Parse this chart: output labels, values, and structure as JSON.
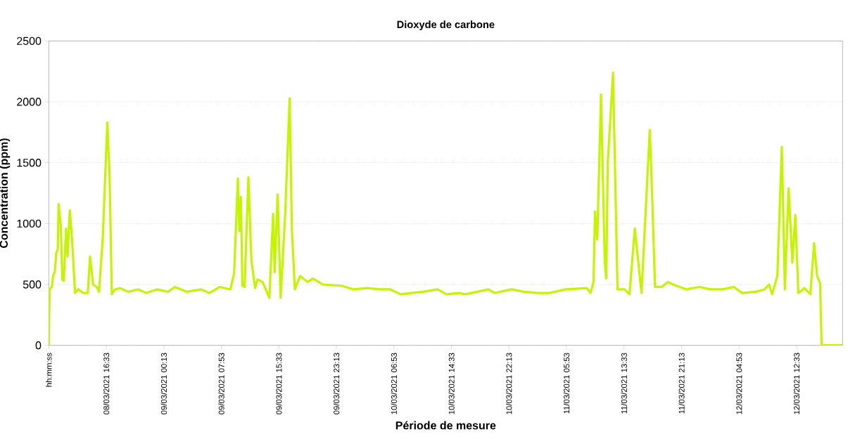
{
  "chart_data": {
    "type": "line",
    "title": "Dioxyde de carbone",
    "xlabel": "Période de mesure",
    "ylabel": "Concentration (ppm)",
    "x": [
      "2021-03-08T08:53",
      "2021-03-08T08:59",
      "2021-03-08T09:17",
      "2021-03-08T09:29",
      "2021-03-08T09:41",
      "2021-03-08T09:53",
      "2021-03-08T10:05",
      "2021-03-08T10:11",
      "2021-03-08T10:29",
      "2021-03-08T10:41",
      "2021-03-08T10:53",
      "2021-03-08T11:11",
      "2021-03-08T11:23",
      "2021-03-08T11:41",
      "2021-03-08T11:59",
      "2021-03-08T12:23",
      "2021-03-08T12:47",
      "2021-03-08T13:29",
      "2021-03-08T14:05",
      "2021-03-08T14:23",
      "2021-03-08T14:47",
      "2021-03-08T15:17",
      "2021-03-08T15:35",
      "2021-03-08T16:05",
      "2021-03-08T16:41",
      "2021-03-08T16:59",
      "2021-03-08T17:17",
      "2021-03-08T17:41",
      "2021-03-08T18:23",
      "2021-03-08T19:29",
      "2021-03-08T20:47",
      "2021-03-08T21:53",
      "2021-03-08T23:17",
      "2021-03-09T00:47",
      "2021-03-09T01:41",
      "2021-03-09T03:17",
      "2021-03-09T05:11",
      "2021-03-09T06:17",
      "2021-03-09T07:41",
      "2021-03-09T09:05",
      "2021-03-09T09:35",
      "2021-03-09T10:05",
      "2021-03-09T10:17",
      "2021-03-09T10:29",
      "2021-03-09T10:41",
      "2021-03-09T10:59",
      "2021-03-09T11:29",
      "2021-03-09T11:53",
      "2021-03-09T12:23",
      "2021-03-09T12:41",
      "2021-03-09T13:23",
      "2021-03-09T14:17",
      "2021-03-09T14:47",
      "2021-03-09T14:59",
      "2021-03-09T15:23",
      "2021-03-09T15:47",
      "2021-03-09T16:23",
      "2021-03-09T16:59",
      "2021-03-09T17:17",
      "2021-03-09T17:41",
      "2021-03-09T18:23",
      "2021-03-09T19:23",
      "2021-03-09T20:05",
      "2021-03-09T21:23",
      "2021-03-09T23:53",
      "2021-03-10T01:29",
      "2021-03-10T03:17",
      "2021-03-10T05:11",
      "2021-03-10T06:23",
      "2021-03-10T07:47",
      "2021-03-10T09:11",
      "2021-03-10T10:47",
      "2021-03-10T12:41",
      "2021-03-10T13:53",
      "2021-03-10T15:29",
      "2021-03-10T16:23",
      "2021-03-10T17:59",
      "2021-03-10T19:29",
      "2021-03-10T20:17",
      "2021-03-10T22:35",
      "2021-03-11T00:11",
      "2021-03-11T02:05",
      "2021-03-11T03:35",
      "2021-03-11T05:47",
      "2021-03-11T08:35",
      "2021-03-11T09:05",
      "2021-03-11T09:29",
      "2021-03-11T09:41",
      "2021-03-11T09:59",
      "2021-03-11T10:29",
      "2021-03-11T10:59",
      "2021-03-11T11:11",
      "2021-03-11T11:23",
      "2021-03-11T12:05",
      "2021-03-11T12:41",
      "2021-03-11T13:35",
      "2021-03-11T14:17",
      "2021-03-11T14:59",
      "2021-03-11T15:53",
      "2021-03-11T16:29",
      "2021-03-11T16:59",
      "2021-03-11T17:17",
      "2021-03-11T17:41",
      "2021-03-11T18:35",
      "2021-03-11T19:23",
      "2021-03-11T20:29",
      "2021-03-11T21:53",
      "2021-03-11T23:35",
      "2021-03-12T01:05",
      "2021-03-12T02:41",
      "2021-03-12T04:11",
      "2021-03-12T05:17",
      "2021-03-12T07:05",
      "2021-03-12T08:17",
      "2021-03-12T08:53",
      "2021-03-12T09:17",
      "2021-03-12T09:59",
      "2021-03-12T10:35",
      "2021-03-12T10:59",
      "2021-03-12T11:29",
      "2021-03-12T11:59",
      "2021-03-12T12:23",
      "2021-03-12T12:47",
      "2021-03-12T13:35",
      "2021-03-12T14:23",
      "2021-03-12T14:53",
      "2021-03-12T15:17",
      "2021-03-12T15:41",
      "2021-03-12T15:53",
      "2021-03-12T18:41"
    ],
    "values": [
      0,
      460,
      480,
      580,
      600,
      760,
      790,
      1160,
      980,
      540,
      530,
      960,
      730,
      1110,
      870,
      430,
      460,
      430,
      430,
      730,
      500,
      480,
      440,
      890,
      1830,
      1400,
      420,
      460,
      470,
      440,
      460,
      430,
      460,
      440,
      480,
      440,
      460,
      430,
      480,
      460,
      590,
      1370,
      940,
      1220,
      490,
      480,
      1380,
      700,
      470,
      540,
      520,
      390,
      1080,
      600,
      1240,
      390,
      1070,
      2030,
      940,
      460,
      570,
      520,
      550,
      500,
      490,
      460,
      470,
      460,
      460,
      420,
      430,
      440,
      460,
      420,
      430,
      420,
      440,
      460,
      430,
      460,
      440,
      430,
      430,
      460,
      470,
      430,
      520,
      1100,
      870,
      2060,
      680,
      550,
      1500,
      2240,
      460,
      460,
      420,
      960,
      430,
      1160,
      1770,
      1260,
      480,
      480,
      520,
      490,
      460,
      480,
      460,
      460,
      480,
      430,
      440,
      460,
      500,
      420,
      570,
      1630,
      460,
      1290,
      680,
      1070,
      430,
      470,
      420,
      840,
      570,
      510,
      0,
      0
    ],
    "color": "#c4f400",
    "xlim": [
      "2021-03-08T08:53",
      "2021-03-12T18:41"
    ],
    "xticks": [
      {
        "value": "2021-03-08T08:53",
        "label": "hh:mm:ss"
      },
      {
        "value": "2021-03-08T16:33",
        "label": "08/03/2021 16:33"
      },
      {
        "value": "2021-03-09T00:13",
        "label": "09/03/2021 00:13"
      },
      {
        "value": "2021-03-09T07:53",
        "label": "09/03/2021 07:53"
      },
      {
        "value": "2021-03-09T15:33",
        "label": "09/03/2021 15:33"
      },
      {
        "value": "2021-03-09T23:13",
        "label": "09/03/2021 23:13"
      },
      {
        "value": "2021-03-10T06:53",
        "label": "10/03/2021 06:53"
      },
      {
        "value": "2021-03-10T14:33",
        "label": "10/03/2021 14:33"
      },
      {
        "value": "2021-03-10T22:13",
        "label": "10/03/2021 22:13"
      },
      {
        "value": "2021-03-11T05:53",
        "label": "11/03/2021 05:53"
      },
      {
        "value": "2021-03-11T13:33",
        "label": "11/03/2021 13:33"
      },
      {
        "value": "2021-03-11T21:13",
        "label": "11/03/2021 21:13"
      },
      {
        "value": "2021-03-12T04:53",
        "label": "12/03/2021 04:53"
      },
      {
        "value": "2021-03-12T12:33",
        "label": "12/03/2021 12:33"
      }
    ],
    "ylim": [
      0,
      2500
    ],
    "yticks": [
      0,
      500,
      1000,
      1500,
      2000,
      2500
    ],
    "grid": "y",
    "line_style": "solid"
  }
}
